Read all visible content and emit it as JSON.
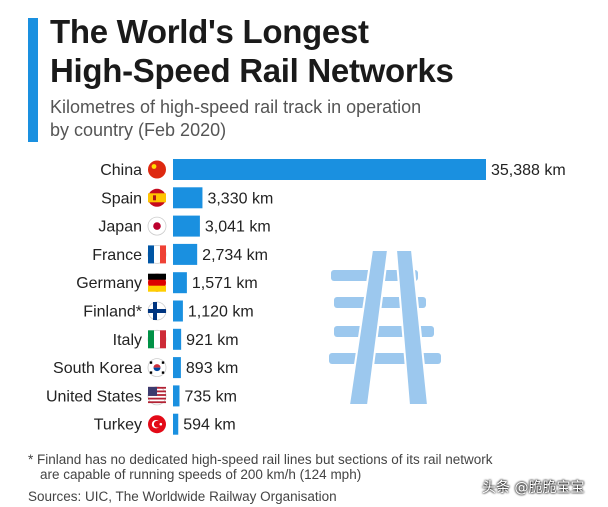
{
  "header": {
    "title_line1": "The World's Longest",
    "title_line2": "High-Speed Rail Networks",
    "subtitle_line1": "Kilometres of high-speed rail track in operation",
    "subtitle_line2": "by country (Feb 2020)"
  },
  "chart_data": {
    "type": "bar",
    "orientation": "horizontal",
    "categories": [
      "China",
      "Spain",
      "Japan",
      "France",
      "Germany",
      "Finland*",
      "Italy",
      "South Korea",
      "United States",
      "Turkey"
    ],
    "values": [
      35388,
      3330,
      3041,
      2734,
      1571,
      1120,
      921,
      893,
      735,
      594
    ],
    "value_labels": [
      "35,388 km",
      "3,330 km",
      "3,041 km",
      "2,734 km",
      "1,571 km",
      "1,120 km",
      "921 km",
      "893 km",
      "735 km",
      "594 km"
    ],
    "unit": "km",
    "xlim": [
      0,
      35388
    ],
    "grid": false,
    "bar_color": "#1a90e0",
    "flags": [
      "china-flag-icon",
      "spain-flag-icon",
      "japan-flag-icon",
      "france-flag-icon",
      "germany-flag-icon",
      "finland-flag-icon",
      "italy-flag-icon",
      "south-korea-flag-icon",
      "united-states-flag-icon",
      "turkey-flag-icon"
    ]
  },
  "illustration": {
    "icon": "railway-track-icon",
    "color": "#9cc8ee"
  },
  "footer": {
    "footnote_line1": "* Finland has no dedicated high-speed rail lines but sections of its rail network",
    "footnote_line2": "are capable of running speeds of 200 km/h (124 mph)",
    "source": "Sources: UIC, The Worldwide Railway Organisation"
  },
  "watermark": "头条 @脆脆宝宝"
}
